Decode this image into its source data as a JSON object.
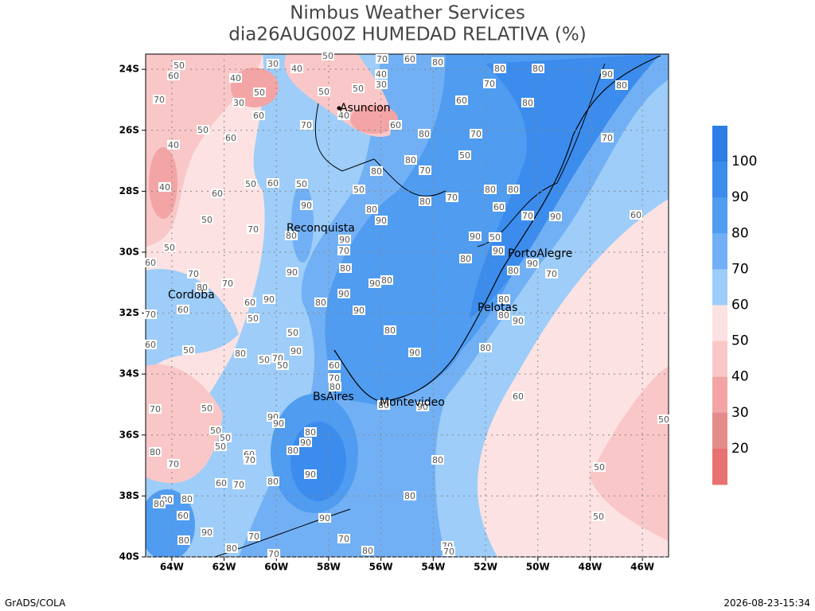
{
  "header": {
    "title": "Nimbus Weather Services",
    "subtitle": "dia26AUG00Z HUMEDAD RELATIVA (%)"
  },
  "map": {
    "xlim": [
      -65,
      -45
    ],
    "ylim": [
      -40,
      -23.5
    ],
    "xticks": [
      {
        "value": -64,
        "label": "64W"
      },
      {
        "value": -62,
        "label": "62W"
      },
      {
        "value": -60,
        "label": "60W"
      },
      {
        "value": -58,
        "label": "58W"
      },
      {
        "value": -56,
        "label": "56W"
      },
      {
        "value": -54,
        "label": "54W"
      },
      {
        "value": -52,
        "label": "52W"
      },
      {
        "value": -50,
        "label": "50W"
      },
      {
        "value": -48,
        "label": "48W"
      },
      {
        "value": -46,
        "label": "46W"
      }
    ],
    "yticks": [
      {
        "value": -24,
        "label": "24S"
      },
      {
        "value": -26,
        "label": "26S"
      },
      {
        "value": -28,
        "label": "28S"
      },
      {
        "value": -30,
        "label": "30S"
      },
      {
        "value": -32,
        "label": "32S"
      },
      {
        "value": -34,
        "label": "34S"
      },
      {
        "value": -36,
        "label": "36S"
      },
      {
        "value": -38,
        "label": "38S"
      },
      {
        "value": -40,
        "label": "40S"
      }
    ],
    "cities": [
      "Asuncion",
      "Reconquista",
      "Cordoba",
      "PortoAlegre",
      "Pelotas",
      "BsAires",
      "Montevideo"
    ],
    "contour_labels": [
      50,
      60,
      70,
      40,
      50,
      30,
      30,
      40,
      50,
      50,
      50,
      30,
      40,
      70,
      60,
      80,
      80,
      80,
      90,
      80,
      80,
      60,
      70,
      40,
      60,
      70,
      60,
      50,
      60,
      40,
      40,
      60,
      50,
      50,
      60,
      50,
      60,
      50,
      90,
      50,
      80,
      90,
      80,
      70,
      80,
      80,
      60,
      70,
      90,
      60,
      70,
      70,
      50,
      80,
      80,
      70,
      80,
      70,
      80,
      90,
      70,
      80,
      90,
      70,
      70,
      80,
      60,
      70,
      60,
      90,
      80,
      90,
      90,
      80,
      90,
      80,
      50,
      90,
      90,
      80,
      70,
      80,
      80,
      90,
      80,
      90,
      80,
      90,
      50,
      50,
      50,
      60,
      80,
      50,
      70,
      90,
      50,
      60,
      70,
      80,
      60,
      50,
      70,
      90,
      90,
      80,
      90,
      50,
      50,
      50,
      80,
      60,
      70,
      80,
      70,
      80,
      50,
      50,
      60,
      70,
      80,
      90,
      80,
      80,
      80,
      80,
      60,
      90,
      50,
      90,
      80,
      70,
      70,
      80,
      70,
      70,
      80,
      70,
      80,
      90
    ]
  },
  "colorbar": {
    "levels": [
      100,
      90,
      80,
      70,
      60,
      50,
      40,
      30,
      20
    ],
    "colors": [
      "#2c7ee6",
      "#3b8ced",
      "#4f9cf0",
      "#72b0f5",
      "#9dcdf8",
      "#fce2e2",
      "#f9c7c7",
      "#f3a5a5",
      "#e48c8c",
      "#e87272"
    ]
  },
  "footer": {
    "left": "GrADS/COLA",
    "right": "2026-08-23-15:34"
  }
}
